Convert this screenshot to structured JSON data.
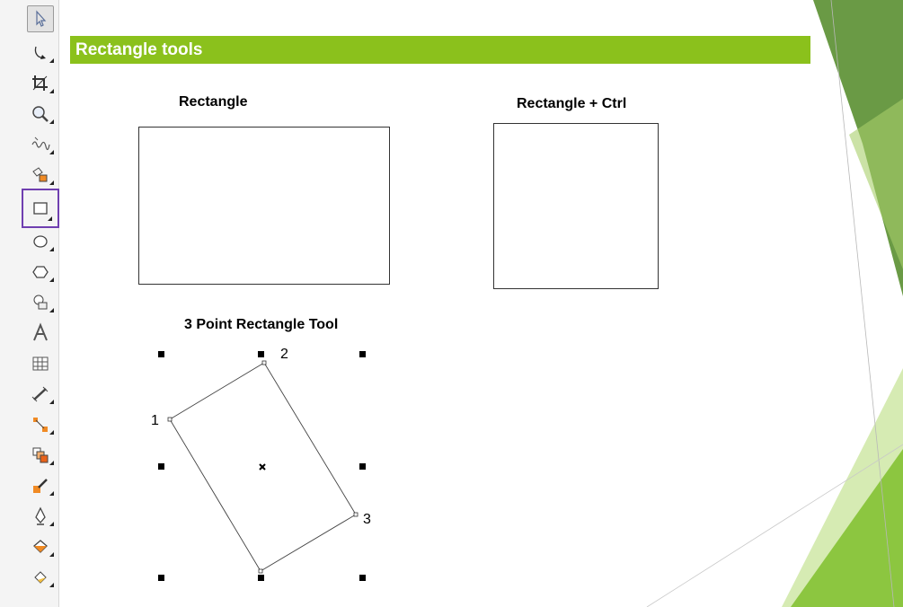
{
  "banner": {
    "title": "Rectangle tools"
  },
  "labels": {
    "rectangle": "Rectangle",
    "rectangle_ctrl": "Rectangle + Ctrl",
    "three_point": "3 Point Rectangle Tool"
  },
  "points": {
    "p1": "1",
    "p2": "2",
    "p3": "3"
  },
  "toolbar": {
    "tools": [
      {
        "name": "pick-tool-icon"
      },
      {
        "name": "shape-tool-icon"
      },
      {
        "name": "crop-tool-icon"
      },
      {
        "name": "zoom-tool-icon"
      },
      {
        "name": "freehand-tool-icon"
      },
      {
        "name": "smart-fill-tool-icon"
      },
      {
        "name": "rectangle-tool-icon"
      },
      {
        "name": "ellipse-tool-icon"
      },
      {
        "name": "polygon-tool-icon"
      },
      {
        "name": "basic-shapes-tool-icon"
      },
      {
        "name": "text-tool-icon"
      },
      {
        "name": "table-tool-icon"
      },
      {
        "name": "dimension-tool-icon"
      },
      {
        "name": "connector-tool-icon"
      },
      {
        "name": "blend-tool-icon"
      },
      {
        "name": "eyedropper-tool-icon"
      },
      {
        "name": "outline-pen-tool-icon"
      },
      {
        "name": "fill-tool-icon"
      },
      {
        "name": "interactive-fill-tool-icon"
      }
    ]
  },
  "colors": {
    "accent": "#8bc11c",
    "active_tool_border": "#6f3fb0"
  }
}
